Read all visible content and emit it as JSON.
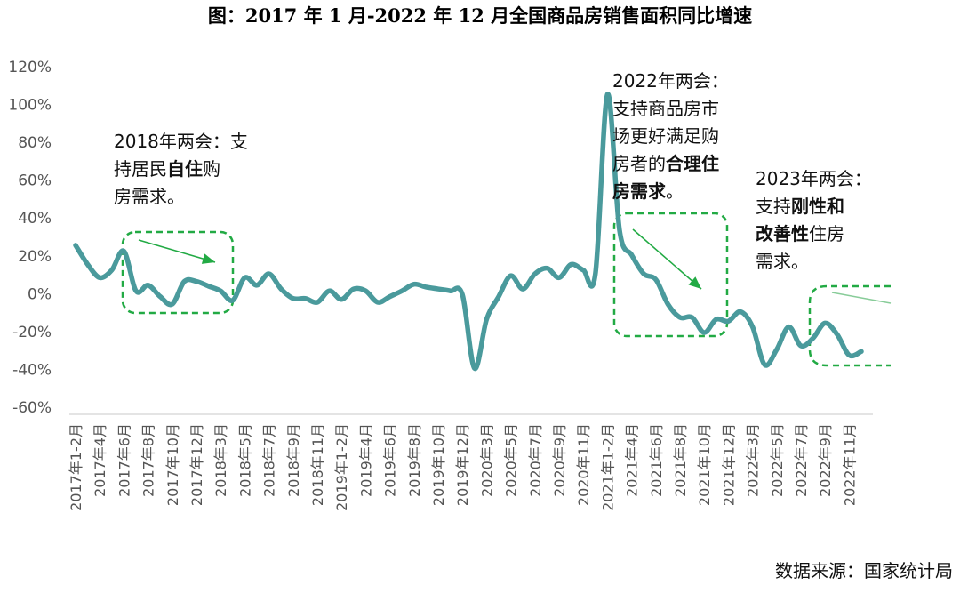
{
  "chart_data": {
    "type": "line",
    "title": "图：2017 年 1 月-2022 年 12 月全国商品房销售面积同比增速",
    "xlabel": "",
    "ylabel": "",
    "ylim": [
      -60,
      120
    ],
    "y_ticks": [
      "120%",
      "100%",
      "80%",
      "60%",
      "40%",
      "20%",
      "0%",
      "-20%",
      "-40%",
      "-60%"
    ],
    "grid": false,
    "tick_labels": [
      "2017年1-2月",
      "2017年4月",
      "2017年6月",
      "2017年8月",
      "2017年10月",
      "2017年12月",
      "2018年3月",
      "2018年5月",
      "2018年7月",
      "2018年9月",
      "2018年11月",
      "2019年1-2月",
      "2019年4月",
      "2019年6月",
      "2019年8月",
      "2019年10月",
      "2019年12月",
      "2020年3月",
      "2020年5月",
      "2020年7月",
      "2020年9月",
      "2020年11月",
      "2021年1-2月",
      "2021年4月",
      "2021年6月",
      "2021年8月",
      "2021年10月",
      "2021年12月",
      "2022年3月",
      "2022年5月",
      "2022年7月",
      "2022年9月",
      "2022年11月"
    ],
    "series": [
      {
        "color": "#4a9a9c",
        "x": [
          "2017年1-2月",
          "2017年3月",
          "2017年4月",
          "2017年5月",
          "2017年6月",
          "2017年7月",
          "2017年8月",
          "2017年9月",
          "2017年10月",
          "2017年11月",
          "2017年12月",
          "2018年1-2月",
          "2018年3月",
          "2018年4月",
          "2018年5月",
          "2018年6月",
          "2018年7月",
          "2018年8月",
          "2018年9月",
          "2018年10月",
          "2018年11月",
          "2018年12月",
          "2019年1-2月",
          "2019年3月",
          "2019年4月",
          "2019年5月",
          "2019年6月",
          "2019年7月",
          "2019年8月",
          "2019年9月",
          "2019年10月",
          "2019年11月",
          "2019年12月",
          "2020年1-2月",
          "2020年3月",
          "2020年4月",
          "2020年5月",
          "2020年6月",
          "2020年7月",
          "2020年8月",
          "2020年9月",
          "2020年10月",
          "2020年11月",
          "2020年12月",
          "2021年1-2月",
          "2021年3月",
          "2021年4月",
          "2021年5月",
          "2021年6月",
          "2021年7月",
          "2021年8月",
          "2021年9月",
          "2021年10月",
          "2021年11月",
          "2021年12月",
          "2022年1-2月",
          "2022年3月",
          "2022年4月",
          "2022年5月",
          "2022年6月",
          "2022年7月",
          "2022年8月",
          "2022年9月",
          "2022年10月",
          "2022年11月",
          "2022年12月"
        ],
        "values": [
          25.1,
          15,
          8,
          12,
          22,
          1,
          4,
          -2,
          -6,
          6,
          6,
          3.5,
          1,
          -4,
          8,
          4,
          10,
          2,
          -3,
          -3,
          -5,
          1,
          -3.5,
          2,
          1,
          -5,
          -2,
          1,
          4.5,
          3,
          2,
          1,
          -1,
          -39.9,
          -14,
          -2,
          9,
          2,
          10,
          13,
          8,
          15,
          12,
          10,
          104.9,
          33,
          20,
          10,
          7,
          -6,
          -13,
          -13,
          -21,
          -14,
          -15,
          -10,
          -18,
          -38,
          -30,
          -18,
          -28,
          -24,
          -16,
          -22,
          -33,
          -31
        ]
      }
    ],
    "annotations": {
      "a2018": [
        "2018年两会：支",
        "持居民",
        "自住",
        "购",
        "房需求。"
      ],
      "a2022": [
        "2022年两会：",
        "支持商品房市",
        "场更好满足购",
        "房者的",
        "合理住",
        "房需求",
        "。"
      ],
      "a2023": [
        "2023年两会：",
        "支持",
        "刚性和",
        "改善性",
        "住房",
        "需求。"
      ]
    },
    "source": "数据来源：国家统计局"
  }
}
